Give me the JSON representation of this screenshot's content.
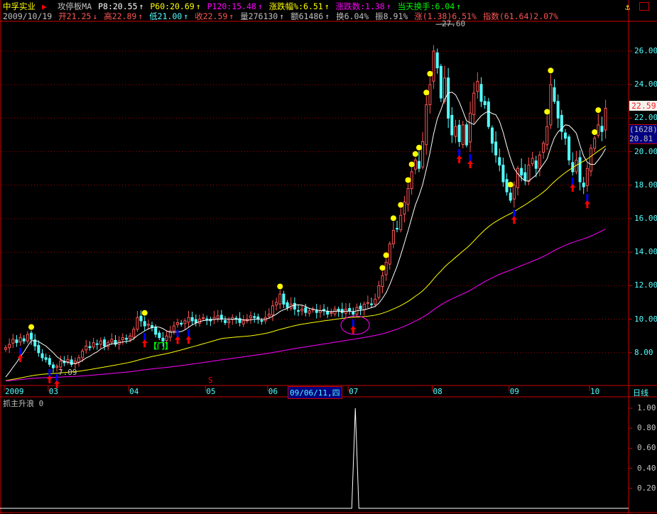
{
  "header": {
    "stock_name": "中孚实业",
    "indicator_name": "攻停板MA",
    "p8": "P8:20.55",
    "p60": "P60:20.69",
    "p120": "P120:15.48",
    "chg_pct": "涨跌幅%:6.51",
    "chg_amt": "涨跌数:1.38",
    "turnover_today": "当天换手:6.04",
    "date": "2009/10/19",
    "open": "开21.25",
    "high": "高22.89",
    "low": "低21.00",
    "close": "收22.59",
    "volume": "量276130",
    "amount": "额61486",
    "turnover": "换6.04%",
    "amplitude": "振8.91%",
    "rise": "涨(1.38)6.51%",
    "index": "指数(61.64)2.07%",
    "arrow_up": "↑",
    "arrow_down": "↓"
  },
  "annotations": {
    "high_label": "27.60",
    "low_label": "7.09",
    "gate_label": "【门】",
    "s_mark": "S",
    "last_price": "22.59",
    "count_label": "(1628)",
    "cursor_price": "20.81",
    "cursor_date": "09/06/11,四",
    "period": "日线"
  },
  "colors": {
    "up": "#ff5555",
    "down": "#54ffff",
    "ma8": "#ffffff",
    "ma60": "#ffff00",
    "ma120": "#ff00ff",
    "axis": "#cc0000",
    "grid": "#aa0000",
    "dot": "#ffff00",
    "buy": "#ff0000",
    "bar": "#0000ff"
  },
  "chart_data": [
    {
      "type": "candlestick",
      "title": "中孚实业",
      "yaxis": {
        "ticks": [
          "8.00",
          "10.00",
          "12.00",
          "14.00",
          "16.00",
          "18.00",
          "20.00",
          "22.00",
          "24.00",
          "26.00"
        ],
        "range": [
          6.6,
          28.2
        ]
      },
      "xaxis": {
        "ticks": [
          "2009",
          "03",
          "04",
          "05",
          "06",
          "07",
          "08",
          "09",
          "10"
        ]
      },
      "month_days": [
        12,
        22,
        21,
        17,
        22,
        23,
        21,
        22,
        5
      ],
      "close": [
        8.3,
        8.5,
        8.8,
        8.6,
        8.9,
        8.7,
        9.1,
        8.8,
        8.4,
        8.0,
        7.7,
        7.6,
        7.3,
        7.1,
        7.2,
        7.5,
        7.4,
        7.6,
        7.3,
        7.5,
        7.7,
        8.1,
        8.4,
        8.3,
        8.6,
        8.5,
        8.7,
        8.4,
        8.6,
        8.8,
        8.5,
        8.7,
        8.9,
        8.8,
        9.0,
        9.4,
        10.1,
        9.9,
        9.6,
        9.7,
        9.5,
        9.1,
        8.9,
        8.7,
        9.0,
        9.3,
        9.6,
        9.8,
        9.7,
        9.9,
        10.1,
        9.9,
        9.8,
        10.0,
        10.1,
        10.0,
        9.9,
        10.1,
        10.2,
        10.0,
        9.8,
        9.9,
        10.1,
        10.0,
        9.8,
        9.9,
        10.0,
        10.2,
        10.1,
        10.0,
        9.9,
        10.1,
        10.3,
        10.8,
        11.0,
        11.5,
        10.9,
        10.7,
        10.9,
        10.6,
        10.5,
        10.6,
        10.4,
        10.5,
        10.6,
        10.4,
        10.5,
        10.5,
        10.3,
        10.4,
        10.6,
        10.5,
        10.4,
        10.6,
        10.5,
        10.3,
        10.7,
        10.6,
        10.9,
        11.0,
        10.9,
        11.2,
        12.0,
        12.6,
        13.4,
        14.5,
        15.3,
        15.4,
        16.2,
        17.0,
        17.8,
        18.8,
        19.5,
        19.0,
        20.6,
        22.8,
        24.0,
        26.0,
        25.0,
        23.2,
        24.4,
        22.0,
        21.0,
        21.5,
        20.6,
        21.6,
        20.4,
        22.3,
        23.5,
        24.2,
        23.0,
        22.8,
        21.5,
        20.5,
        19.8,
        19.2,
        18.2,
        17.6,
        17.1,
        18.0,
        19.0,
        18.6,
        18.3,
        19.2,
        19.6,
        19.0,
        19.8,
        20.5,
        21.5,
        24.0,
        23.0,
        22.0,
        21.2,
        20.8,
        19.5,
        18.8,
        19.5,
        18.2,
        17.9,
        19.0,
        20.2,
        20.8,
        21.6,
        21.2,
        22.59
      ],
      "series": [
        {
          "name": "P8"
        },
        {
          "name": "P60"
        },
        {
          "name": "P120"
        }
      ],
      "high_point": 27.6,
      "low_point": 7.09,
      "signal_dot_days": [
        7,
        38,
        75,
        103,
        104,
        106,
        108,
        110,
        111,
        112,
        113,
        115,
        116,
        138,
        148,
        149,
        161,
        162
      ],
      "buy_arrow_days": [
        4,
        12,
        14,
        38,
        47,
        50,
        95,
        124,
        127,
        139,
        155,
        159
      ]
    },
    {
      "type": "line",
      "title": "抓主升浪 0",
      "yaxis": {
        "ticks": [
          "0.20",
          "0.40",
          "0.60",
          "0.80",
          "1.00"
        ],
        "range": [
          0,
          1
        ]
      },
      "spike_day": 95,
      "spike_value": 1.0
    }
  ]
}
